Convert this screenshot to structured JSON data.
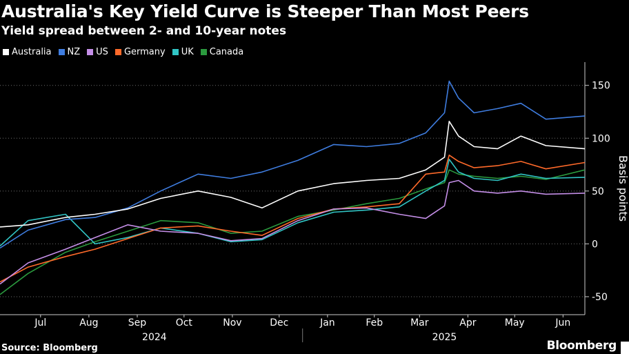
{
  "chart_data": {
    "type": "line",
    "title": "Australia's Key Yield Curve is Steeper Than Most Peers",
    "subtitle": "Yield spread between 2- and 10-year notes",
    "ylabel": "Basis points",
    "ylim": [
      -67,
      172
    ],
    "yticks": [
      150,
      100,
      50,
      0,
      -50
    ],
    "ytick_labels": [
      "150",
      "100",
      "50",
      "0",
      "-50"
    ],
    "xlim": [
      "2024-06-20",
      "2025-06-30"
    ],
    "months": [
      {
        "label": "Jul",
        "date": "2024-07-16"
      },
      {
        "label": "Aug",
        "date": "2024-08-16"
      },
      {
        "label": "Sep",
        "date": "2024-09-16"
      },
      {
        "label": "Oct",
        "date": "2024-10-16"
      },
      {
        "label": "Nov",
        "date": "2024-11-16"
      },
      {
        "label": "Dec",
        "date": "2024-12-16"
      },
      {
        "label": "Jan",
        "date": "2025-01-16"
      },
      {
        "label": "Feb",
        "date": "2025-02-15"
      },
      {
        "label": "Mar",
        "date": "2025-03-16"
      },
      {
        "label": "Apr",
        "date": "2025-04-16"
      },
      {
        "label": "May",
        "date": "2025-05-16"
      },
      {
        "label": "Jun",
        "date": "2025-06-16"
      }
    ],
    "years": [
      {
        "label": "2024",
        "date": "2024-09-27"
      },
      {
        "label": "2025",
        "date": "2025-04-01"
      }
    ],
    "year_separator": "2024-12-31",
    "grid": true,
    "legend_position": "top-left",
    "x": [
      "2024-06-20",
      "2024-07-08",
      "2024-08-01",
      "2024-08-20",
      "2024-09-10",
      "2024-10-01",
      "2024-10-25",
      "2024-11-15",
      "2024-12-05",
      "2024-12-28",
      "2025-01-20",
      "2025-02-10",
      "2025-03-03",
      "2025-03-20",
      "2025-04-01",
      "2025-04-04",
      "2025-04-10",
      "2025-04-20",
      "2025-05-05",
      "2025-05-20",
      "2025-06-05",
      "2025-06-30"
    ],
    "series": [
      {
        "name": "Australia",
        "color": "#ffffff",
        "values": [
          16,
          18,
          25,
          28,
          33,
          43,
          50,
          44,
          34,
          50,
          57,
          60,
          62,
          70,
          82,
          116,
          102,
          92,
          90,
          102,
          93,
          90
        ]
      },
      {
        "name": "NZ",
        "color": "#3f7de0",
        "values": [
          -4,
          13,
          23,
          25,
          34,
          50,
          66,
          62,
          68,
          79,
          94,
          92,
          95,
          105,
          124,
          154,
          138,
          124,
          128,
          133,
          118,
          121
        ]
      },
      {
        "name": "US",
        "color": "#c58fe8",
        "values": [
          -38,
          -18,
          -5,
          6,
          18,
          12,
          10,
          3,
          5,
          22,
          33,
          34,
          28,
          24,
          36,
          58,
          60,
          50,
          48,
          50,
          47,
          48
        ]
      },
      {
        "name": "Germany",
        "color": "#ff6a2a",
        "values": [
          -36,
          -22,
          -12,
          -5,
          5,
          15,
          17,
          12,
          8,
          24,
          33,
          35,
          38,
          66,
          68,
          84,
          78,
          72,
          74,
          78,
          71,
          77
        ]
      },
      {
        "name": "UK",
        "color": "#31c5c5",
        "values": [
          -2,
          22,
          28,
          0,
          6,
          15,
          10,
          2,
          4,
          20,
          30,
          32,
          35,
          50,
          60,
          80,
          68,
          62,
          60,
          66,
          62,
          63
        ]
      },
      {
        "name": "Canada",
        "color": "#2b9a3e",
        "values": [
          -48,
          -28,
          -8,
          2,
          12,
          22,
          20,
          10,
          12,
          26,
          32,
          38,
          43,
          52,
          58,
          70,
          66,
          64,
          62,
          64,
          61,
          70
        ]
      }
    ]
  },
  "source": "Source: Bloomberg",
  "brand": "Bloomberg"
}
